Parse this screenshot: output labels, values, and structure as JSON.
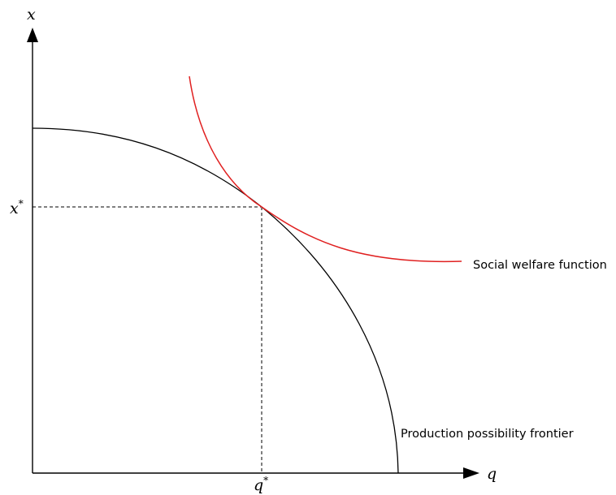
{
  "diagram": {
    "axes": {
      "y_label": "x",
      "x_label": "q"
    },
    "optimum": {
      "x_star_label": "x",
      "q_star_label": "q",
      "superscript": "*"
    },
    "curves": {
      "ppf_label": "Production possibility frontier",
      "swf_label": "Social welfare function"
    },
    "colors": {
      "axes": "#000000",
      "ppf": "#000000",
      "swf": "#e02020",
      "guides": "#000000"
    }
  }
}
